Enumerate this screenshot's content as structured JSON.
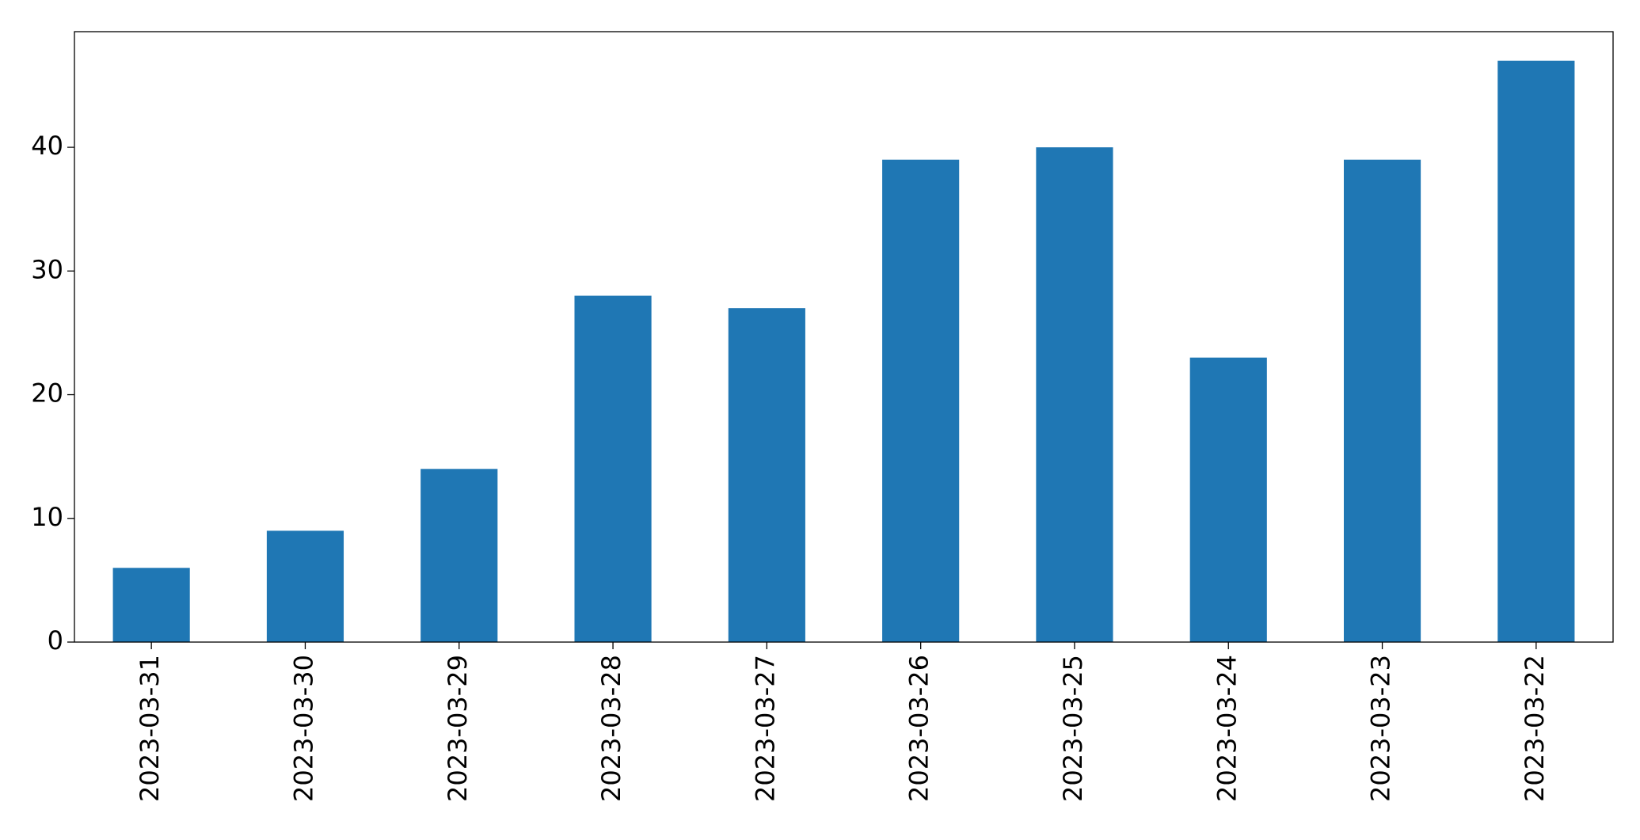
{
  "chart_data": {
    "type": "bar",
    "categories": [
      "2023-03-31",
      "2023-03-30",
      "2023-03-29",
      "2023-03-28",
      "2023-03-27",
      "2023-03-26",
      "2023-03-25",
      "2023-03-24",
      "2023-03-23",
      "2023-03-22"
    ],
    "values": [
      6,
      9,
      14,
      28,
      27,
      39,
      40,
      23,
      39,
      47
    ],
    "color": "#1f77b4",
    "ylim": [
      0,
      49.35
    ],
    "yticks": [
      0,
      10,
      20,
      30,
      40
    ],
    "grid": false
  }
}
